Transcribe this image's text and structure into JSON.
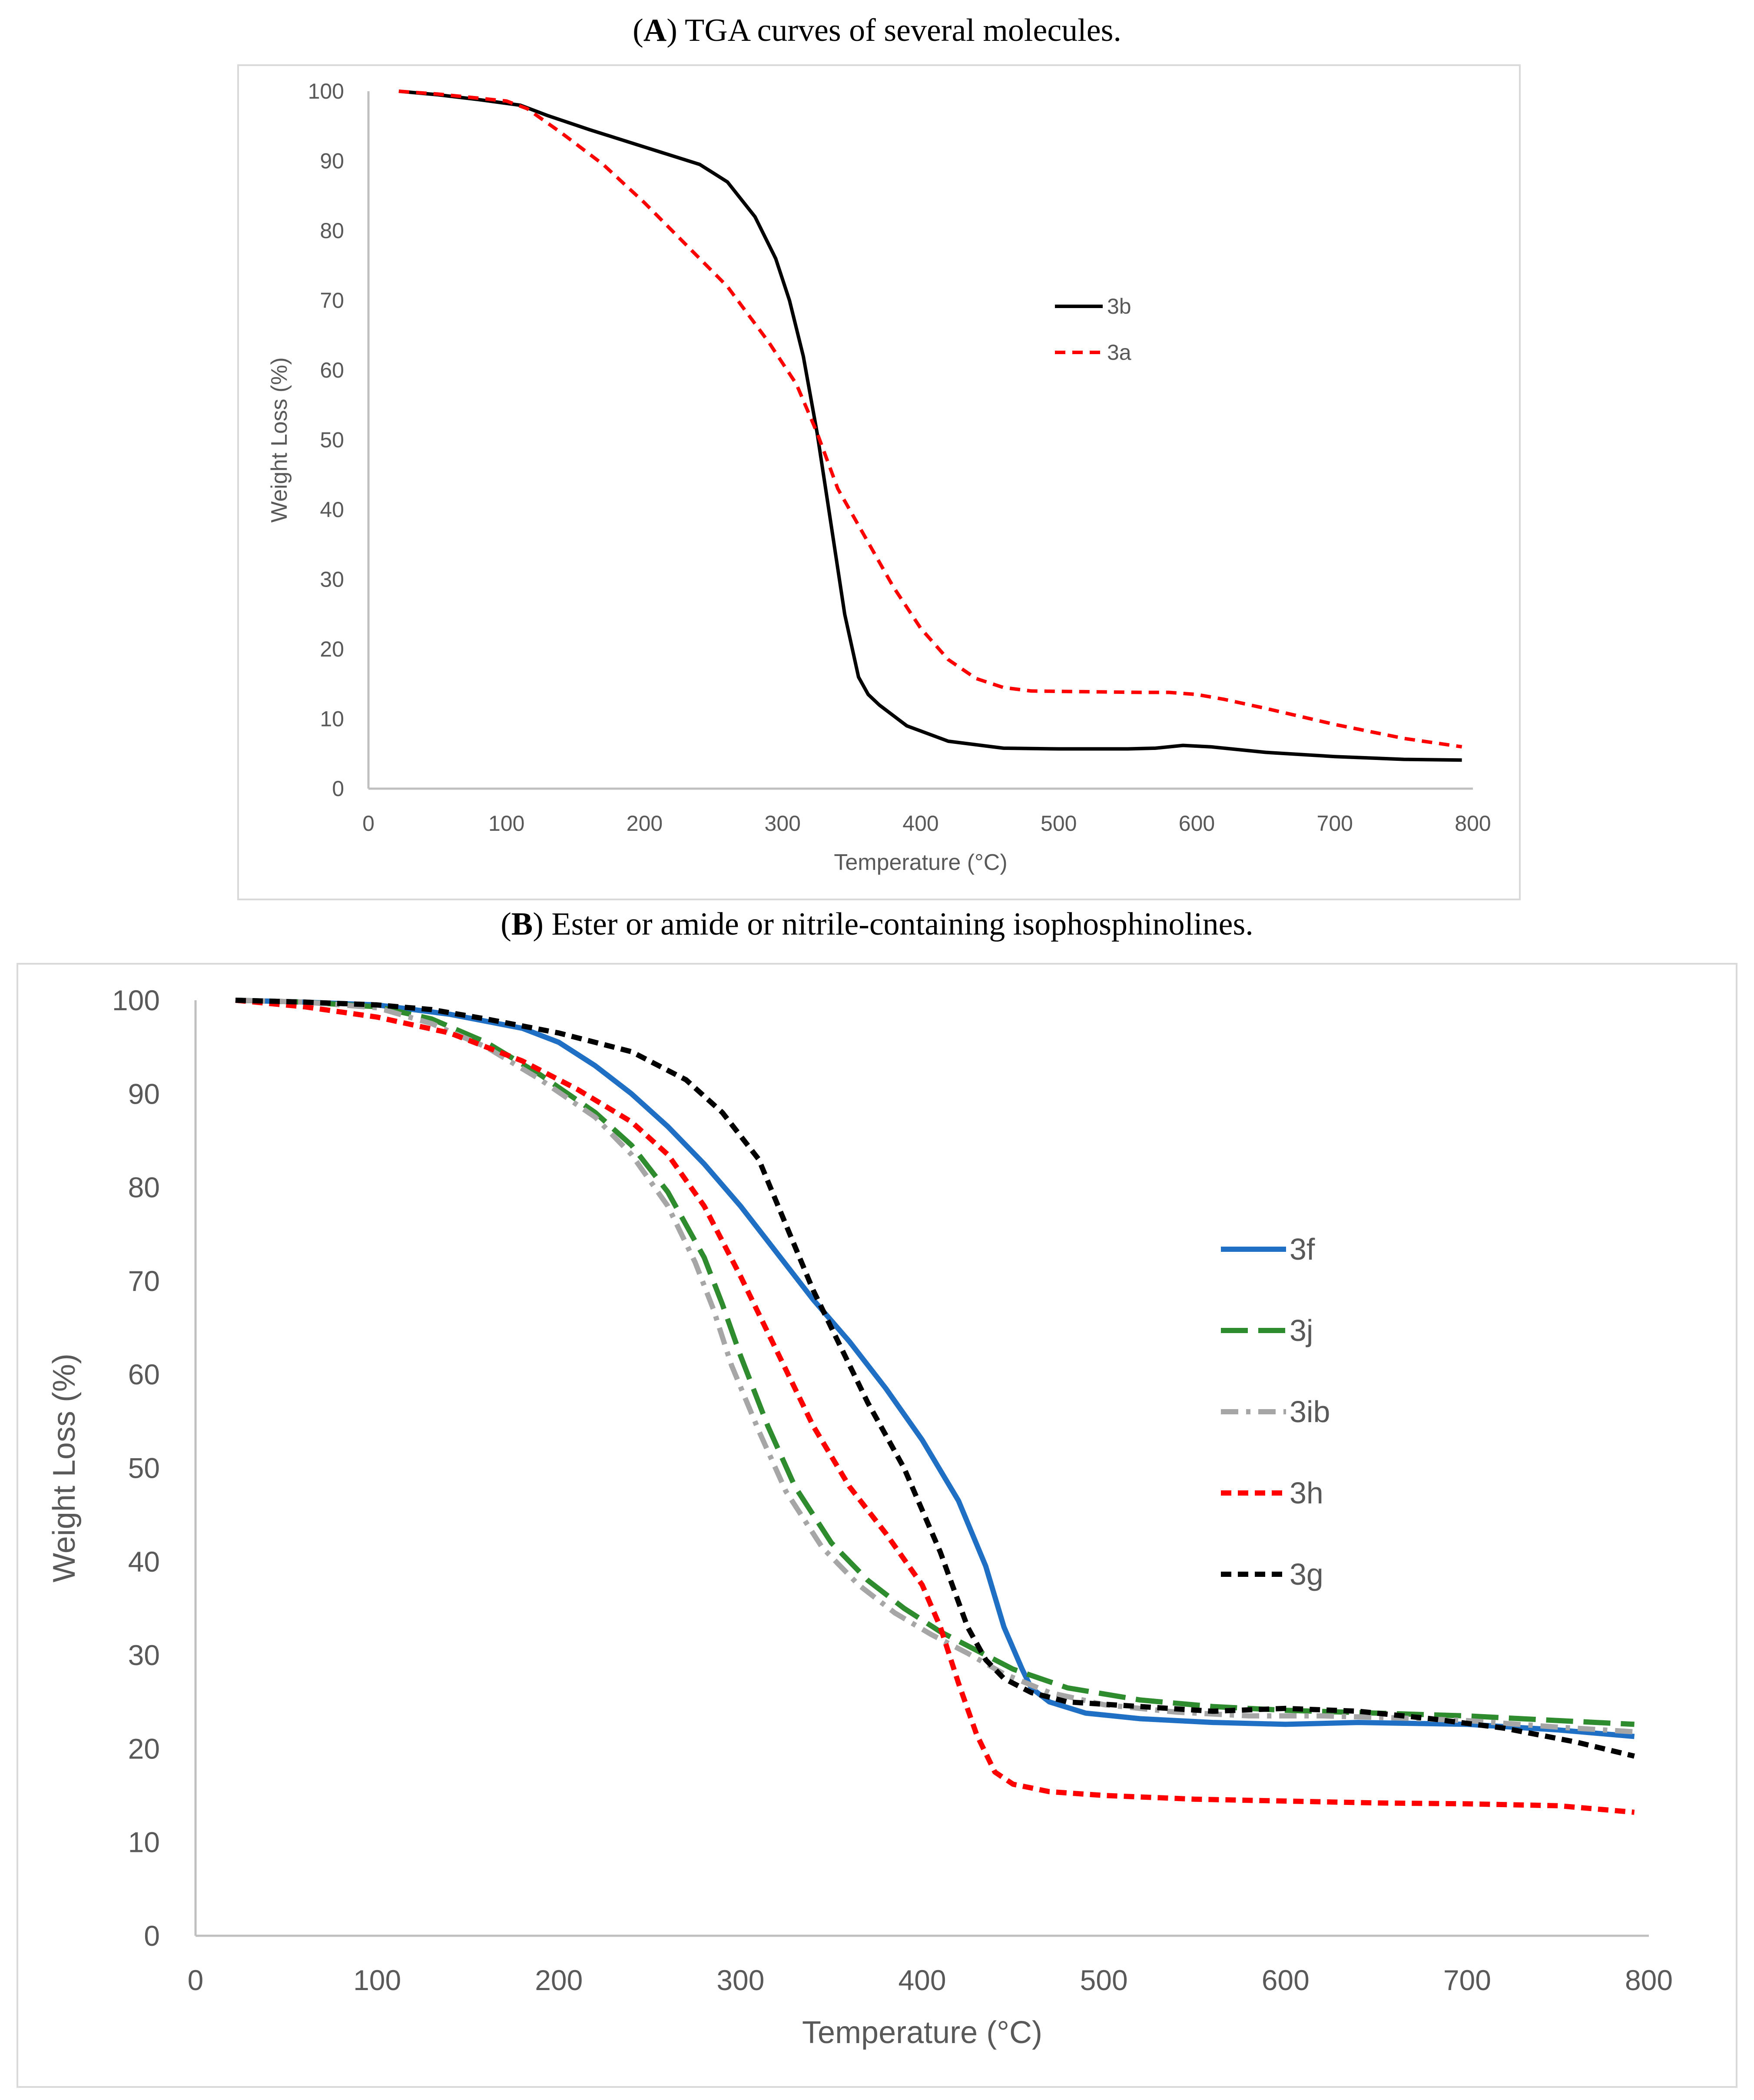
{
  "chart_data": [
    {
      "type": "line",
      "panel": "A",
      "panel_letter": "A",
      "title": "TGA curves of several molecules.",
      "xlabel": "Temperature (°C)",
      "ylabel": "Weight Loss (%)",
      "xlim": [
        0,
        800
      ],
      "ylim": [
        0,
        100
      ],
      "xticks": [
        "0",
        "100",
        "200",
        "300",
        "400",
        "500",
        "600",
        "700",
        "800"
      ],
      "yticks": [
        "0",
        "10",
        "20",
        "30",
        "40",
        "50",
        "60",
        "70",
        "80",
        "90",
        "100"
      ],
      "grid": false,
      "legend_position": "center-right",
      "series": [
        {
          "name": "3b",
          "color": "#000000",
          "style": "solid",
          "x": [
            22,
            50,
            80,
            110,
            130,
            160,
            200,
            240,
            260,
            280,
            295,
            305,
            315,
            325,
            335,
            345,
            355,
            362,
            370,
            390,
            420,
            460,
            500,
            550,
            570,
            590,
            610,
            650,
            700,
            750,
            792
          ],
          "y": [
            100,
            99.5,
            98.8,
            98,
            96.5,
            94.5,
            92,
            89.5,
            87,
            82,
            76,
            70,
            62,
            51,
            38,
            25,
            16,
            13.5,
            12,
            9,
            6.8,
            5.8,
            5.7,
            5.7,
            5.8,
            6.2,
            6.0,
            5.2,
            4.6,
            4.2,
            4.1
          ]
        },
        {
          "name": "3a",
          "color": "#ff0000",
          "style": "dashed",
          "x": [
            22,
            50,
            80,
            100,
            115,
            140,
            170,
            200,
            230,
            260,
            290,
            310,
            325,
            340,
            360,
            380,
            400,
            420,
            440,
            460,
            480,
            520,
            560,
            580,
            600,
            620,
            650,
            700,
            750,
            792
          ],
          "y": [
            100,
            99.6,
            99,
            98.6,
            97.5,
            94,
            89.5,
            84,
            78,
            72,
            64,
            58,
            51,
            43,
            36,
            29,
            23,
            18.5,
            15.8,
            14.5,
            14.0,
            13.9,
            13.8,
            13.8,
            13.5,
            12.8,
            11.5,
            9.2,
            7.2,
            6.0
          ]
        }
      ]
    },
    {
      "type": "line",
      "panel": "B",
      "panel_letter": "B",
      "title": "Ester or amide or nitrile-containing isophosphinolines.",
      "xlabel": "Temperature (°C)",
      "ylabel": "Weight Loss (%)",
      "xlim": [
        0,
        800
      ],
      "ylim": [
        0,
        100
      ],
      "xticks": [
        "0",
        "100",
        "200",
        "300",
        "400",
        "500",
        "600",
        "700",
        "800"
      ],
      "yticks": [
        "0",
        "10",
        "20",
        "30",
        "40",
        "50",
        "60",
        "70",
        "80",
        "90",
        "100"
      ],
      "grid": false,
      "legend_position": "center-right",
      "series": [
        {
          "name": "3f",
          "color": "#1f6fc5",
          "style": "solid",
          "x": [
            22,
            60,
            100,
            140,
            180,
            200,
            220,
            240,
            260,
            280,
            300,
            320,
            340,
            360,
            380,
            400,
            420,
            435,
            445,
            455,
            460,
            470,
            490,
            520,
            560,
            600,
            640,
            700,
            750,
            792
          ],
          "y": [
            100,
            99.8,
            99.5,
            98.5,
            97,
            95.5,
            93,
            90,
            86.5,
            82.5,
            78,
            73,
            68,
            63.5,
            58.5,
            53,
            46.5,
            39.5,
            33,
            28.5,
            26.5,
            25,
            23.8,
            23.2,
            22.8,
            22.6,
            22.8,
            22.6,
            22.0,
            21.3
          ]
        },
        {
          "name": "3j",
          "color": "#2e8b2e",
          "style": "longdash",
          "x": [
            22,
            60,
            100,
            130,
            160,
            190,
            220,
            240,
            260,
            280,
            290,
            300,
            315,
            330,
            350,
            370,
            390,
            410,
            430,
            450,
            480,
            520,
            560,
            600,
            650,
            700,
            750,
            792
          ],
          "y": [
            100,
            99.8,
            99.3,
            98,
            95.5,
            92,
            88,
            84.5,
            79.5,
            72.5,
            67.5,
            62,
            54.5,
            48,
            42,
            38,
            35,
            32.5,
            30.5,
            28.5,
            26.5,
            25.2,
            24.5,
            24.1,
            23.8,
            23.5,
            23.0,
            22.6
          ]
        },
        {
          "name": "3ib",
          "color": "#a6a6a6",
          "style": "dashdot",
          "x": [
            22,
            60,
            100,
            130,
            160,
            190,
            220,
            240,
            260,
            275,
            285,
            295,
            310,
            325,
            345,
            365,
            385,
            405,
            425,
            445,
            470,
            500,
            540,
            580,
            620,
            660,
            700,
            750,
            792
          ],
          "y": [
            100,
            99.8,
            99.2,
            97.5,
            95,
            91.5,
            87.5,
            83.5,
            78,
            72,
            67,
            61,
            54,
            47.5,
            41.5,
            37.5,
            34.5,
            32.2,
            30.2,
            28,
            26,
            24.7,
            23.9,
            23.5,
            23.5,
            23.3,
            23.0,
            22.3,
            21.8
          ]
        },
        {
          "name": "3h",
          "color": "#ff0000",
          "style": "dashed",
          "x": [
            22,
            60,
            100,
            140,
            180,
            210,
            240,
            260,
            280,
            300,
            320,
            340,
            360,
            380,
            400,
            410,
            420,
            430,
            440,
            450,
            470,
            500,
            550,
            600,
            650,
            700,
            750,
            792
          ],
          "y": [
            100,
            99.3,
            98.2,
            96.5,
            93.5,
            90.5,
            87,
            83.5,
            78,
            70.5,
            62.5,
            54.5,
            48,
            43,
            37.5,
            33,
            27,
            21.5,
            17.5,
            16.2,
            15.4,
            15.0,
            14.6,
            14.4,
            14.2,
            14.1,
            13.9,
            13.2
          ]
        },
        {
          "name": "3g",
          "color": "#000000",
          "style": "dashed",
          "x": [
            22,
            60,
            100,
            130,
            160,
            200,
            240,
            270,
            290,
            310,
            325,
            340,
            355,
            370,
            390,
            410,
            425,
            435,
            445,
            460,
            480,
            520,
            560,
            600,
            640,
            680,
            720,
            760,
            792
          ],
          "y": [
            100,
            99.8,
            99.5,
            99,
            98,
            96.5,
            94.5,
            91.5,
            88,
            83,
            76,
            69,
            63,
            57,
            50,
            41,
            33,
            29.5,
            27.5,
            26,
            25,
            24.5,
            24,
            24.3,
            24.0,
            23.2,
            22.2,
            20.7,
            19.2
          ]
        }
      ]
    }
  ]
}
